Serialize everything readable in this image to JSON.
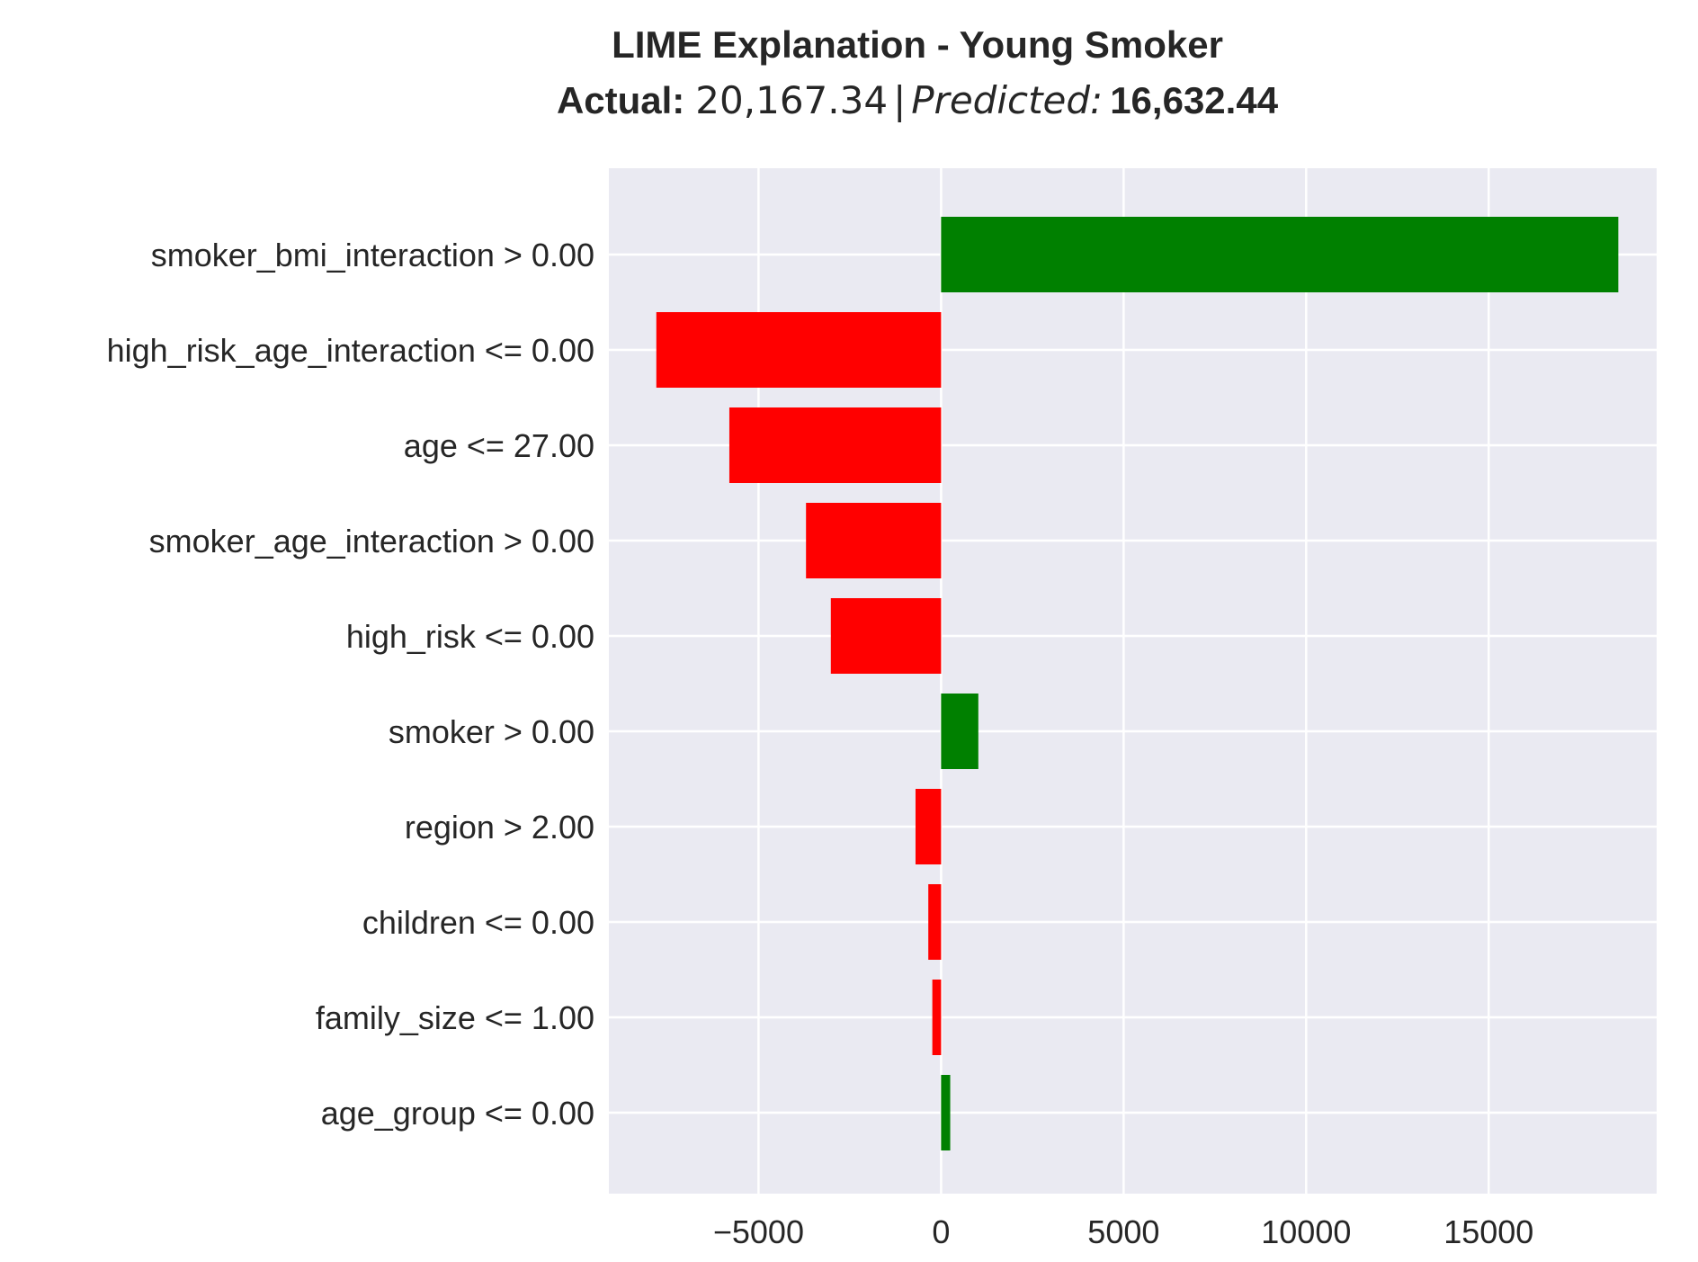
{
  "chart_data": {
    "type": "bar",
    "orientation": "horizontal",
    "title": {
      "line1": "LIME Explanation - Young Smoker",
      "actual_label": "Actual:",
      "actual_value": "20,167.34",
      "predicted_label": "Predicted:",
      "predicted_value": "16,632.44"
    },
    "xlabel": "",
    "ylabel": "",
    "xlim": [
      -9100,
      19600
    ],
    "xticks": [
      -5000,
      0,
      5000,
      10000,
      15000
    ],
    "xtick_labels": [
      "−5000",
      "0",
      "5000",
      "10000",
      "15000"
    ],
    "categories": [
      "smoker_bmi_interaction > 0.00",
      "high_risk_age_interaction <= 0.00",
      "age <= 27.00",
      "smoker_age_interaction > 0.00",
      "high_risk <= 0.00",
      "smoker > 0.00",
      "region > 2.00",
      "children <= 0.00",
      "family_size <= 1.00",
      "age_group <= 0.00"
    ],
    "values": [
      18550,
      -7800,
      -5800,
      -3700,
      -3020,
      1020,
      -700,
      -350,
      -240,
      250
    ],
    "colors": {
      "positive": "#008000",
      "negative": "#ff0000",
      "background": "#eaeaf2",
      "grid": "#ffffff",
      "text": "#262626"
    },
    "grid": true,
    "legend": "none"
  }
}
